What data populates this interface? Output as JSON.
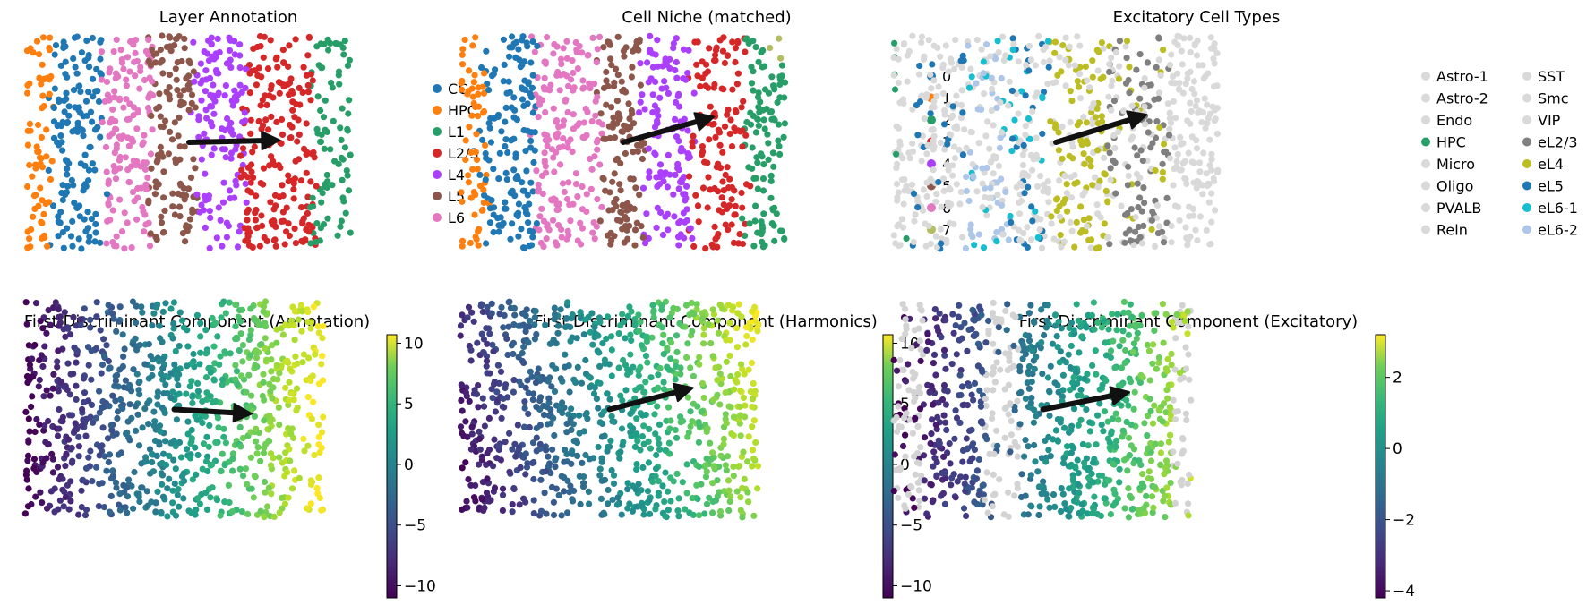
{
  "chart_data": [
    {
      "type": "scatter",
      "title": "Layer Annotation",
      "legend_placement": "right",
      "point_color_by": "category",
      "categories": [
        "CC",
        "HPC",
        "L1",
        "L2/3",
        "L4",
        "L5",
        "L6"
      ],
      "colors": [
        "#1f77b4",
        "#ff7f0e",
        "#279e68",
        "#d62728",
        "#aa40fc",
        "#8c564b",
        "#e377c2"
      ],
      "bands": [
        "HPC",
        "CC",
        "L6",
        "L5",
        "L4",
        "L2/3",
        "L1"
      ],
      "band_widths": [
        0.08,
        0.15,
        0.15,
        0.14,
        0.15,
        0.21,
        0.12
      ],
      "arrow": {
        "from": [
          0.5,
          0.5
        ],
        "to": [
          0.78,
          0.49
        ]
      }
    },
    {
      "type": "scatter",
      "title": "Cell Niche (matched)",
      "legend_placement": "right",
      "point_color_by": "category",
      "categories": [
        "0",
        "1",
        "2",
        "3",
        "4",
        "5",
        "6",
        "7"
      ],
      "colors": [
        "#1f77b4",
        "#ff7f0e",
        "#279e68",
        "#d62728",
        "#aa40fc",
        "#8c564b",
        "#e377c2",
        "#b5bd61"
      ],
      "bands": [
        "1",
        "0",
        "6",
        "5",
        "4",
        "3",
        "2"
      ],
      "band_widths": [
        0.07,
        0.16,
        0.2,
        0.13,
        0.15,
        0.17,
        0.12
      ],
      "arrow": {
        "from": [
          0.5,
          0.5
        ],
        "to": [
          0.78,
          0.38
        ]
      }
    },
    {
      "type": "scatter",
      "title": "Excitatory Cell Types",
      "legend_placement": "right",
      "legend_columns": 2,
      "point_color_by": "category",
      "categories": [
        "Astro-1",
        "Astro-2",
        "Endo",
        "HPC",
        "Micro",
        "Oligo",
        "PVALB",
        "Reln",
        "SST",
        "Smc",
        "VIP",
        "eL2/3",
        "eL4",
        "eL5",
        "eL6-1",
        "eL6-2"
      ],
      "colors": [
        "#d9d9d9",
        "#d9d9d9",
        "#d9d9d9",
        "#279e68",
        "#d9d9d9",
        "#d9d9d9",
        "#d9d9d9",
        "#d9d9d9",
        "#d9d9d9",
        "#d9d9d9",
        "#d9d9d9",
        "#7f7f7f",
        "#bcbd22",
        "#1f77b4",
        "#17becf",
        "#aec7e8"
      ],
      "arrow": {
        "from": [
          0.5,
          0.5
        ],
        "to": [
          0.78,
          0.37
        ]
      }
    },
    {
      "type": "scatter",
      "title": "First Discriminant Component (Annotation)",
      "colorbar": {
        "range": [
          -11,
          10.7
        ],
        "ticks": [
          10,
          5,
          0,
          -5,
          -10
        ],
        "tick_labels": [
          "10",
          "5",
          "0",
          "−5",
          "−10"
        ]
      },
      "colormap": "viridis",
      "arrow": {
        "from": [
          0.5,
          0.5
        ],
        "to": [
          0.76,
          0.52
        ]
      }
    },
    {
      "type": "scatter",
      "title": "First Discriminant Component (Harmonics)",
      "colorbar": {
        "range": [
          -11,
          10.7
        ],
        "ticks": [
          10,
          5,
          0,
          -5,
          -10
        ],
        "tick_labels": [
          "10",
          "5",
          "0",
          "−5",
          "−10"
        ]
      },
      "colormap": "viridis",
      "arrow": {
        "from": [
          0.5,
          0.5
        ],
        "to": [
          0.78,
          0.4
        ]
      }
    },
    {
      "type": "scatter",
      "title": "First Discriminant Component (Excitatory)",
      "colorbar": {
        "range": [
          -4.2,
          3.2
        ],
        "ticks": [
          2,
          0,
          -2,
          -4
        ],
        "tick_labels": [
          "2",
          "0",
          "−2",
          "−4"
        ]
      },
      "colormap": "viridis",
      "arrow": {
        "from": [
          0.5,
          0.5
        ],
        "to": [
          0.79,
          0.42
        ]
      }
    }
  ]
}
